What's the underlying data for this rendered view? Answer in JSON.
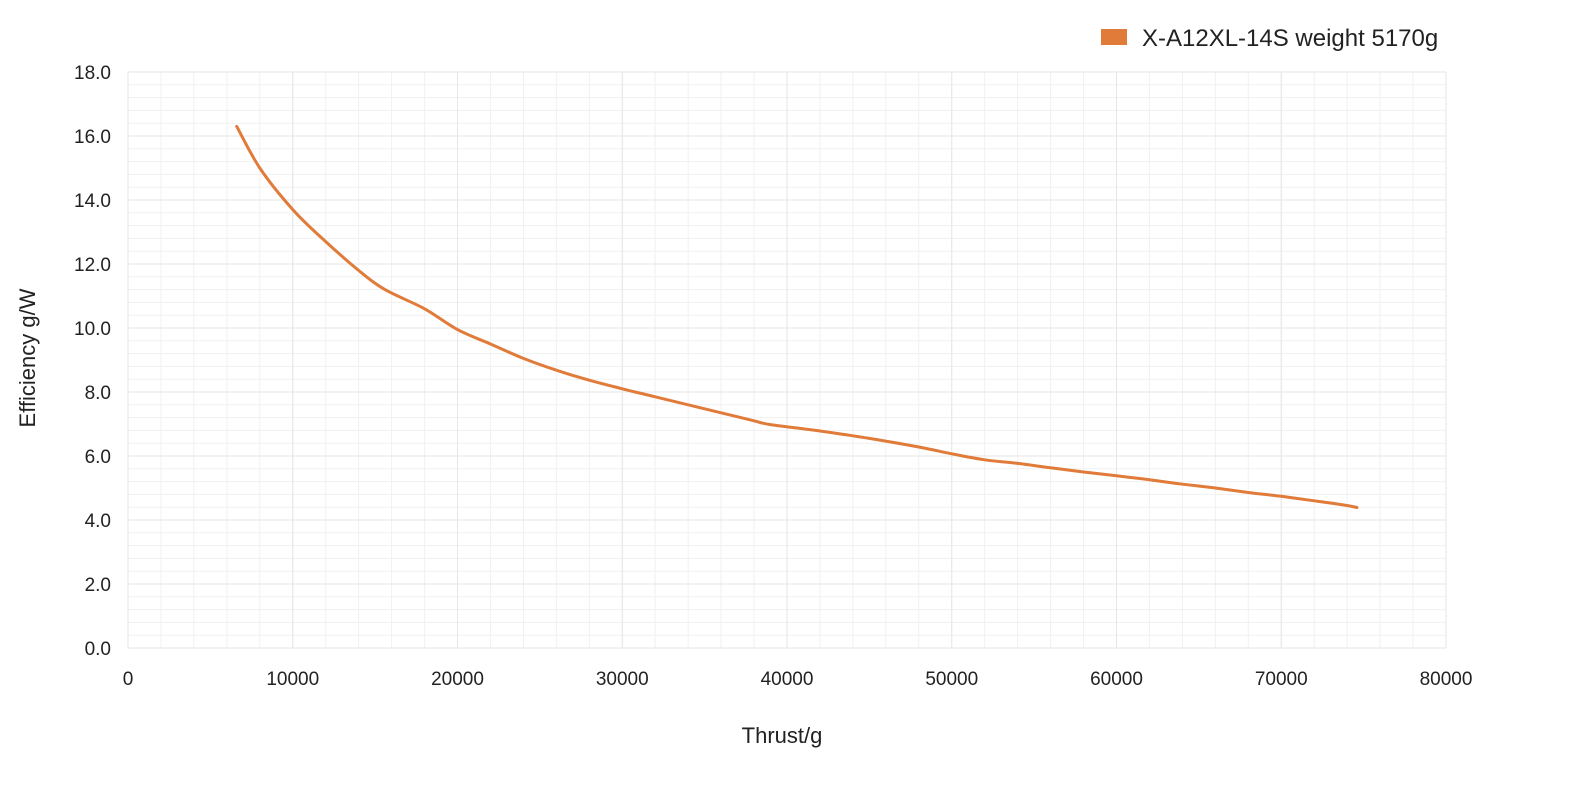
{
  "chart_data": {
    "type": "line",
    "title": "",
    "xlabel": "Thrust/g",
    "ylabel": "Efficiency g/W",
    "xlim": [
      0,
      80000
    ],
    "ylim": [
      0,
      18
    ],
    "x_ticks": [
      0,
      10000,
      20000,
      30000,
      40000,
      50000,
      60000,
      70000,
      80000
    ],
    "x_tick_labels": [
      "0",
      "10000",
      "20000",
      "30000",
      "40000",
      "50000",
      "60000",
      "70000",
      "80000"
    ],
    "y_ticks": [
      0,
      2,
      4,
      6,
      8,
      10,
      12,
      14,
      16,
      18
    ],
    "y_tick_labels": [
      "0.0",
      "2.0",
      "4.0",
      "6.0",
      "8.0",
      "10.0",
      "12.0",
      "14.0",
      "16.0",
      "18.0"
    ],
    "grid": true,
    "legend_position": "top-right",
    "series": [
      {
        "name": "X-A12XL-14S weight 5170g",
        "color": "#E07B39",
        "x": [
          6600,
          8000,
          10000,
          12000,
          14000,
          15600,
          18000,
          20000,
          22000,
          24000,
          26000,
          28000,
          30000,
          32000,
          34000,
          36000,
          38000,
          39000,
          42000,
          45000,
          48000,
          50000,
          52000,
          54000,
          56000,
          58000,
          60000,
          62000,
          64000,
          66000,
          68000,
          70000,
          72000,
          73800,
          74600
        ],
        "y": [
          16.3,
          15.0,
          13.7,
          12.7,
          11.8,
          11.2,
          10.6,
          9.95,
          9.5,
          9.05,
          8.68,
          8.37,
          8.1,
          7.85,
          7.6,
          7.35,
          7.1,
          6.98,
          6.78,
          6.55,
          6.28,
          6.07,
          5.88,
          5.77,
          5.63,
          5.5,
          5.38,
          5.26,
          5.12,
          5.0,
          4.86,
          4.74,
          4.6,
          4.47,
          4.39
        ]
      }
    ]
  }
}
